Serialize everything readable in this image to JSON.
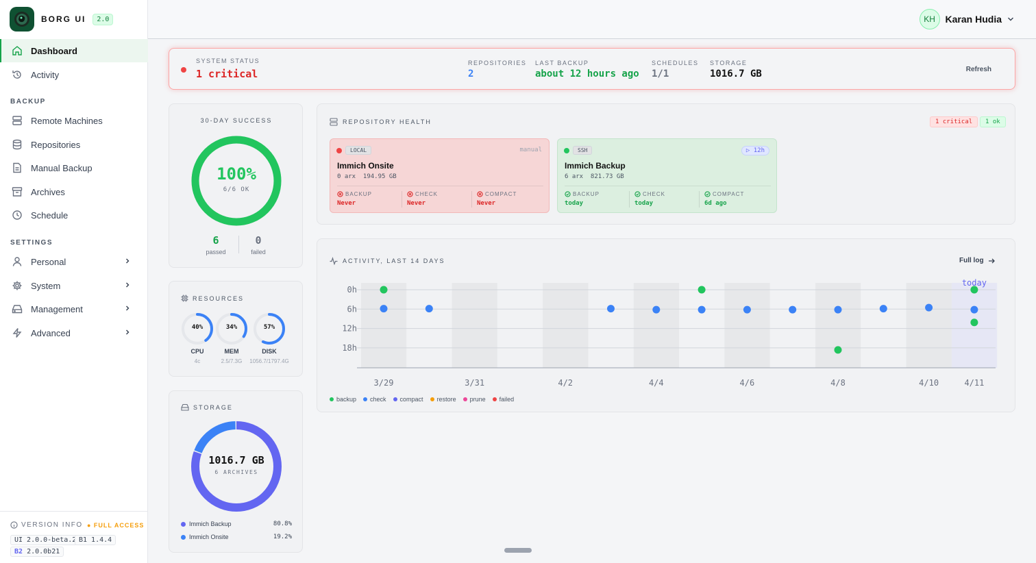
{
  "brand": {
    "name": "BORG UI",
    "version": "2.0"
  },
  "nav": {
    "dashboard": "Dashboard",
    "activity": "Activity",
    "section_backup": "BACKUP",
    "remote": "Remote Machines",
    "repositories": "Repositories",
    "manual": "Manual Backup",
    "archives": "Archives",
    "schedule": "Schedule",
    "section_settings": "SETTINGS",
    "personal": "Personal",
    "system": "System",
    "management": "Management",
    "advanced": "Advanced"
  },
  "version_info": {
    "label": "VERSION INFO",
    "access": "● FULL ACCESS",
    "ui": "UI 2.0.0-beta.2",
    "b1": "B1 1.4.4",
    "b2_tag": "B2",
    "b2": "2.0.0b21"
  },
  "user": {
    "initials": "KH",
    "name": "Karan Hudia"
  },
  "status": {
    "label": "SYSTEM STATUS",
    "value": "1 critical",
    "repos_label": "REPOSITORIES",
    "repos": "2",
    "last_label": "LAST BACKUP",
    "last": "about 12 hours ago",
    "sched_label": "SCHEDULES",
    "sched": "1/1",
    "storage_label": "STORAGE",
    "storage": "1016.7 GB",
    "refresh": "Refresh"
  },
  "success": {
    "title": "30-DAY SUCCESS",
    "percent": "100%",
    "sub": "6/6 OK",
    "ratio": 1.0,
    "passed": "6",
    "passed_label": "passed",
    "failed": "0",
    "failed_label": "failed"
  },
  "resources": {
    "title": "RESOURCES",
    "items": [
      {
        "value": "40%",
        "label": "CPU",
        "sub": "4c",
        "fraction": 0.4
      },
      {
        "value": "34%",
        "label": "MEM",
        "sub": "2.5/7.3G",
        "fraction": 0.34
      },
      {
        "value": "57%",
        "label": "DISK",
        "sub": "1056.7/1797.4G",
        "fraction": 0.57
      }
    ]
  },
  "storage": {
    "title": "STORAGE",
    "total": "1016.7 GB",
    "sub": "6 ARCHIVES",
    "items": [
      {
        "name": "Immich Backup",
        "pct": "80.8%",
        "fraction": 0.808,
        "color": "#6366f1"
      },
      {
        "name": "Immich Onsite",
        "pct": "19.2%",
        "fraction": 0.192,
        "color": "#3b82f6"
      }
    ]
  },
  "health": {
    "title": "REPOSITORY HEALTH",
    "critical": "1 critical",
    "ok": "1 ok",
    "repos": [
      {
        "tag": "LOCAL",
        "name": "Immich Onsite",
        "meta": "0 arx  194.95 GB",
        "right": "manual",
        "stats": [
          {
            "k": "BACKUP",
            "v": "Never"
          },
          {
            "k": "CHECK",
            "v": "Never"
          },
          {
            "k": "COMPACT",
            "v": "Never"
          }
        ]
      },
      {
        "tag": "SSH",
        "name": "Immich Backup",
        "meta": "6 arx  821.73 GB",
        "right": "▷ 12h",
        "stats": [
          {
            "k": "BACKUP",
            "v": "today"
          },
          {
            "k": "CHECK",
            "v": "today"
          },
          {
            "k": "COMPACT",
            "v": "6d ago"
          }
        ]
      }
    ]
  },
  "activity": {
    "title": "ACTIVITY, LAST 14 DAYS",
    "full_log": "Full log",
    "today": "today",
    "legend": [
      {
        "name": "backup",
        "color": "#22c55e"
      },
      {
        "name": "check",
        "color": "#3b82f6"
      },
      {
        "name": "compact",
        "color": "#6366f1"
      },
      {
        "name": "restore",
        "color": "#f59e0b"
      },
      {
        "name": "prune",
        "color": "#ec4899"
      },
      {
        "name": "failed",
        "color": "#ef4444"
      }
    ]
  },
  "chart_data": {
    "type": "scatter",
    "title": "ACTIVITY, LAST 14 DAYS",
    "x_ticks": [
      "3/29",
      "3/31",
      "4/2",
      "4/4",
      "4/6",
      "4/8",
      "4/10",
      "4/11"
    ],
    "x_tick_days": [
      0,
      2,
      4,
      6,
      8,
      10,
      12,
      13
    ],
    "y_ticks": [
      "0h",
      "6h",
      "12h",
      "18h"
    ],
    "ylim": [
      0,
      24
    ],
    "series": [
      {
        "name": "backup",
        "color": "#22c55e",
        "points": [
          {
            "day": 0,
            "hour": 0
          },
          {
            "day": 7,
            "hour": 0
          },
          {
            "day": 10,
            "hour": 17.5
          },
          {
            "day": 13,
            "hour": 0
          },
          {
            "day": 13,
            "hour": 9.5
          }
        ]
      },
      {
        "name": "check",
        "color": "#3b82f6",
        "points": [
          {
            "day": 0,
            "hour": 5.5
          },
          {
            "day": 1,
            "hour": 5.5
          },
          {
            "day": 5,
            "hour": 5.5
          },
          {
            "day": 6,
            "hour": 5.8
          },
          {
            "day": 7,
            "hour": 5.8
          },
          {
            "day": 8,
            "hour": 5.8
          },
          {
            "day": 9,
            "hour": 5.8
          },
          {
            "day": 10,
            "hour": 5.8
          },
          {
            "day": 11,
            "hour": 5.5
          },
          {
            "day": 12,
            "hour": 5.2
          },
          {
            "day": 13,
            "hour": 5.8
          }
        ]
      }
    ]
  }
}
